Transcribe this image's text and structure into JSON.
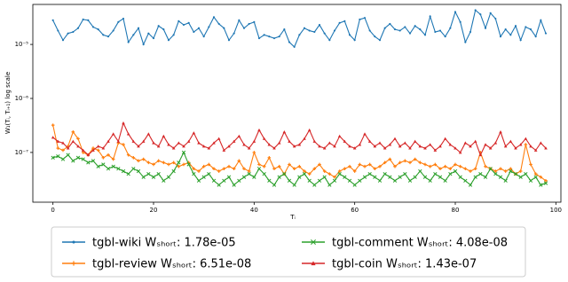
{
  "chart_data": {
    "type": "line",
    "ylabel": "W₁(Tᵢ, Tᵢ₊₁) log scale",
    "xlabel": "Tᵢ",
    "yscale": "log",
    "legend": "bottom",
    "xlim": [
      -4,
      101
    ],
    "xticks": [
      0,
      20,
      40,
      60,
      80,
      100
    ],
    "ylim": [
      1.2e-08,
      5.5e-05
    ],
    "yticks": [
      {
        "value": 1e-07,
        "label": "10⁻⁷"
      },
      {
        "value": 1e-06,
        "label": "10⁻⁶"
      },
      {
        "value": 1e-05,
        "label": "10⁻⁵"
      }
    ],
    "x": [
      0,
      1,
      2,
      3,
      4,
      5,
      6,
      7,
      8,
      9,
      10,
      11,
      12,
      13,
      14,
      15,
      16,
      17,
      18,
      19,
      20,
      21,
      22,
      23,
      24,
      25,
      26,
      27,
      28,
      29,
      30,
      31,
      32,
      33,
      34,
      35,
      36,
      37,
      38,
      39,
      40,
      41,
      42,
      43,
      44,
      45,
      46,
      47,
      48,
      49,
      50,
      51,
      52,
      53,
      54,
      55,
      56,
      57,
      58,
      59,
      60,
      61,
      62,
      63,
      64,
      65,
      66,
      67,
      68,
      69,
      70,
      71,
      72,
      73,
      74,
      75,
      76,
      77,
      78,
      79,
      80,
      81,
      82,
      83,
      84,
      85,
      86,
      87,
      88,
      89,
      90,
      91,
      92,
      93,
      94,
      95,
      96,
      97,
      98
    ],
    "series": [
      {
        "name": "tgbl-wiki Wₛₕₒᵣₜ: 1.78e-05",
        "color": "#1f77b4",
        "marker": "circle",
        "values": [
          2.8e-05,
          1.8e-05,
          1.2e-05,
          1.6e-05,
          1.7e-05,
          2e-05,
          2.9e-05,
          2.8e-05,
          2.1e-05,
          1.9e-05,
          1.5e-05,
          1.4e-05,
          1.8e-05,
          2.6e-05,
          3e-05,
          1.1e-05,
          1.5e-05,
          2e-05,
          1e-05,
          1.6e-05,
          1.3e-05,
          2.2e-05,
          1.9e-05,
          1.2e-05,
          1.5e-05,
          2.7e-05,
          2.3e-05,
          2.5e-05,
          1.7e-05,
          2e-05,
          1.4e-05,
          2.1e-05,
          3.2e-05,
          2.4e-05,
          2e-05,
          1.2e-05,
          1.6e-05,
          2.8e-05,
          2e-05,
          2.4e-05,
          2.6e-05,
          1.3e-05,
          1.5e-05,
          1.4e-05,
          1.3e-05,
          1.4e-05,
          1.9e-05,
          1.1e-05,
          9e-06,
          1.5e-05,
          2e-05,
          1.8e-05,
          1.7e-05,
          2.3e-05,
          1.6e-05,
          1.2e-05,
          1.8e-05,
          2.5e-05,
          2.7e-05,
          1.5e-05,
          1.2e-05,
          2.9e-05,
          3.1e-05,
          1.8e-05,
          1.4e-05,
          1.2e-05,
          2e-05,
          2.4e-05,
          1.9e-05,
          1.8e-05,
          2.1e-05,
          1.6e-05,
          2.2e-05,
          1.9e-05,
          1.5e-05,
          3.3e-05,
          1.7e-05,
          1.8e-05,
          1.4e-05,
          2e-05,
          4e-05,
          2.6e-05,
          1.1e-05,
          1.7e-05,
          4.3e-05,
          3.6e-05,
          2e-05,
          3.8e-05,
          3e-05,
          1.4e-05,
          1.9e-05,
          1.5e-05,
          2.2e-05,
          1.2e-05,
          2.1e-05,
          1.9e-05,
          1.4e-05,
          2.8e-05,
          1.6e-05
        ]
      },
      {
        "name": "tgbl-review Wₛₕₒᵣₜ: 6.51e-08",
        "color": "#ff7f0e",
        "marker": "plus",
        "values": [
          3.2e-07,
          1.2e-07,
          1.1e-07,
          1.3e-07,
          2.4e-07,
          1.8e-07,
          1e-07,
          9e-08,
          1.2e-07,
          1.1e-07,
          8e-08,
          9e-08,
          7.5e-08,
          1.5e-07,
          1.4e-07,
          9e-08,
          8e-08,
          7e-08,
          7.5e-08,
          6.5e-08,
          6e-08,
          7e-08,
          6.5e-08,
          6e-08,
          6.5e-08,
          5.5e-08,
          6e-08,
          6.5e-08,
          5e-08,
          4.5e-08,
          5.5e-08,
          6e-08,
          5e-08,
          4.5e-08,
          5e-08,
          5.5e-08,
          5e-08,
          7e-08,
          5e-08,
          4.5e-08,
          1e-07,
          6e-08,
          5.5e-08,
          8e-08,
          5e-08,
          5.5e-08,
          4e-08,
          6e-08,
          5e-08,
          5.5e-08,
          4.5e-08,
          4e-08,
          5e-08,
          6e-08,
          4.5e-08,
          4e-08,
          3.5e-08,
          4.5e-08,
          5e-08,
          5.5e-08,
          4.5e-08,
          6e-08,
          5.5e-08,
          6e-08,
          5e-08,
          5.5e-08,
          6.5e-08,
          7.5e-08,
          5.5e-08,
          6.5e-08,
          7e-08,
          6.5e-08,
          7.5e-08,
          6.5e-08,
          6e-08,
          5.5e-08,
          6e-08,
          5e-08,
          5.5e-08,
          5e-08,
          6e-08,
          5.5e-08,
          5e-08,
          4.5e-08,
          5e-08,
          1e-07,
          5.5e-08,
          5e-08,
          4.5e-08,
          5e-08,
          4.5e-08,
          5e-08,
          4e-08,
          4.5e-08,
          1.4e-07,
          6e-08,
          4e-08,
          3.5e-08,
          3e-08
        ]
      },
      {
        "name": "tgbl-comment Wₛₕₒᵣₜ: 4.08e-08",
        "color": "#2ca02c",
        "marker": "x",
        "values": [
          8e-08,
          8.5e-08,
          7.5e-08,
          9e-08,
          7e-08,
          8e-08,
          7.5e-08,
          6.5e-08,
          7e-08,
          5.5e-08,
          6e-08,
          5e-08,
          5.5e-08,
          5e-08,
          4.5e-08,
          4e-08,
          5e-08,
          4.5e-08,
          3.5e-08,
          4e-08,
          3.5e-08,
          4e-08,
          3e-08,
          3.5e-08,
          4.5e-08,
          6.5e-08,
          1e-07,
          6e-08,
          4e-08,
          3e-08,
          3.5e-08,
          4e-08,
          3e-08,
          2.5e-08,
          3e-08,
          3.5e-08,
          2.5e-08,
          3e-08,
          3.5e-08,
          4e-08,
          3.5e-08,
          5e-08,
          4e-08,
          3e-08,
          2.5e-08,
          3.5e-08,
          4e-08,
          3e-08,
          2.5e-08,
          3.5e-08,
          4e-08,
          3e-08,
          2.5e-08,
          3e-08,
          3.5e-08,
          2.5e-08,
          3e-08,
          4e-08,
          3.5e-08,
          3e-08,
          2.5e-08,
          3e-08,
          3.5e-08,
          4e-08,
          3.5e-08,
          3e-08,
          4e-08,
          3.5e-08,
          3e-08,
          3.5e-08,
          4e-08,
          3e-08,
          3.5e-08,
          4.5e-08,
          3.5e-08,
          3e-08,
          4e-08,
          3.5e-08,
          3e-08,
          4e-08,
          4.5e-08,
          3.5e-08,
          3e-08,
          2.5e-08,
          3.5e-08,
          4e-08,
          3.5e-08,
          5e-08,
          4e-08,
          3.5e-08,
          3e-08,
          4.5e-08,
          4e-08,
          3.5e-08,
          4e-08,
          3e-08,
          3.5e-08,
          2.5e-08,
          2.7e-08
        ]
      },
      {
        "name": "tgbl-coin Wₛₕₒᵣₜ: 1.43e-07",
        "color": "#d62728",
        "marker": "triangle",
        "values": [
          1.9e-07,
          1.6e-07,
          1.5e-07,
          1.2e-07,
          1.6e-07,
          1.3e-07,
          1.1e-07,
          9e-08,
          1.1e-07,
          1.3e-07,
          1.2e-07,
          1.6e-07,
          2.2e-07,
          1.6e-07,
          3.5e-07,
          2.2e-07,
          1.6e-07,
          1.3e-07,
          1.6e-07,
          2.2e-07,
          1.5e-07,
          1.3e-07,
          2e-07,
          1.4e-07,
          1.2e-07,
          1.5e-07,
          1.3e-07,
          1.6e-07,
          2.3e-07,
          1.5e-07,
          1.3e-07,
          1.2e-07,
          1.5e-07,
          1.8e-07,
          1.1e-07,
          1.3e-07,
          1.6e-07,
          2e-07,
          1.4e-07,
          1.2e-07,
          1.6e-07,
          2.6e-07,
          1.8e-07,
          1.4e-07,
          1.2e-07,
          1.5e-07,
          2.4e-07,
          1.6e-07,
          1.3e-07,
          1.4e-07,
          1.8e-07,
          2.6e-07,
          1.6e-07,
          1.3e-07,
          1.2e-07,
          1.5e-07,
          1.3e-07,
          2e-07,
          1.6e-07,
          1.3e-07,
          1.2e-07,
          1.4e-07,
          2.2e-07,
          1.6e-07,
          1.3e-07,
          1.5e-07,
          1.2e-07,
          1.4e-07,
          1.8e-07,
          1.3e-07,
          1.5e-07,
          1.2e-07,
          1.6e-07,
          1.3e-07,
          1.2e-07,
          1.4e-07,
          1.1e-07,
          1.3e-07,
          1.8e-07,
          1.4e-07,
          1.2e-07,
          1e-07,
          1.5e-07,
          1.3e-07,
          1.6e-07,
          9e-08,
          1.4e-07,
          1.2e-07,
          1.5e-07,
          2.4e-07,
          1.3e-07,
          1.6e-07,
          1.2e-07,
          1.4e-07,
          1.8e-07,
          1.3e-07,
          1.1e-07,
          1.5e-07,
          1.2e-07
        ]
      }
    ]
  }
}
